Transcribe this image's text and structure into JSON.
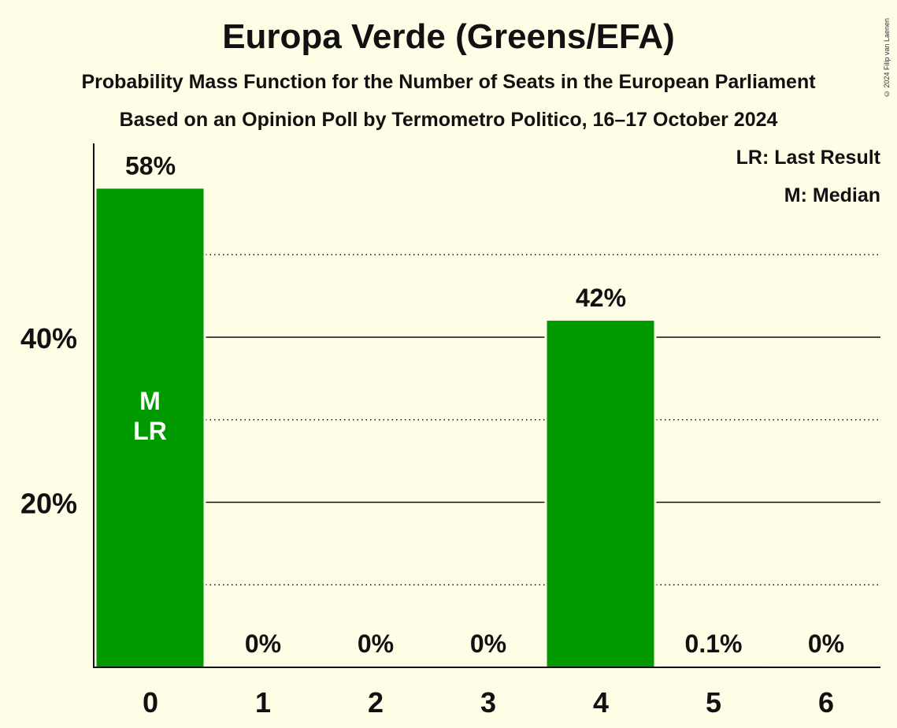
{
  "title": "Europa Verde (Greens/EFA)",
  "subtitle": "Probability Mass Function for the Number of Seats in the European Parliament",
  "subtitle2": "Based on an Opinion Poll by Termometro Politico, 16–17 October 2024",
  "copyright": "© 2024 Filip van Laenen",
  "legend": {
    "last_result": "LR: Last Result",
    "median": "M: Median"
  },
  "colors": {
    "bar": "#009900",
    "background": "#FFFDE6",
    "text": "#111111"
  },
  "chart_data": {
    "type": "bar",
    "categories": [
      "0",
      "1",
      "2",
      "3",
      "4",
      "5",
      "6"
    ],
    "values": [
      58,
      0,
      0,
      0,
      42,
      0.1,
      0
    ],
    "value_labels": [
      "58%",
      "0%",
      "0%",
      "0%",
      "42%",
      "0.1%",
      "0%"
    ],
    "bar_annotations": {
      "0": [
        "M",
        "LR"
      ]
    },
    "ytick_labels": [
      "20%",
      "40%"
    ],
    "yticks": [
      20,
      40
    ],
    "minor_gridlines": [
      10,
      30,
      50
    ],
    "ylim": [
      0,
      63
    ],
    "xlabel": "",
    "ylabel": ""
  }
}
